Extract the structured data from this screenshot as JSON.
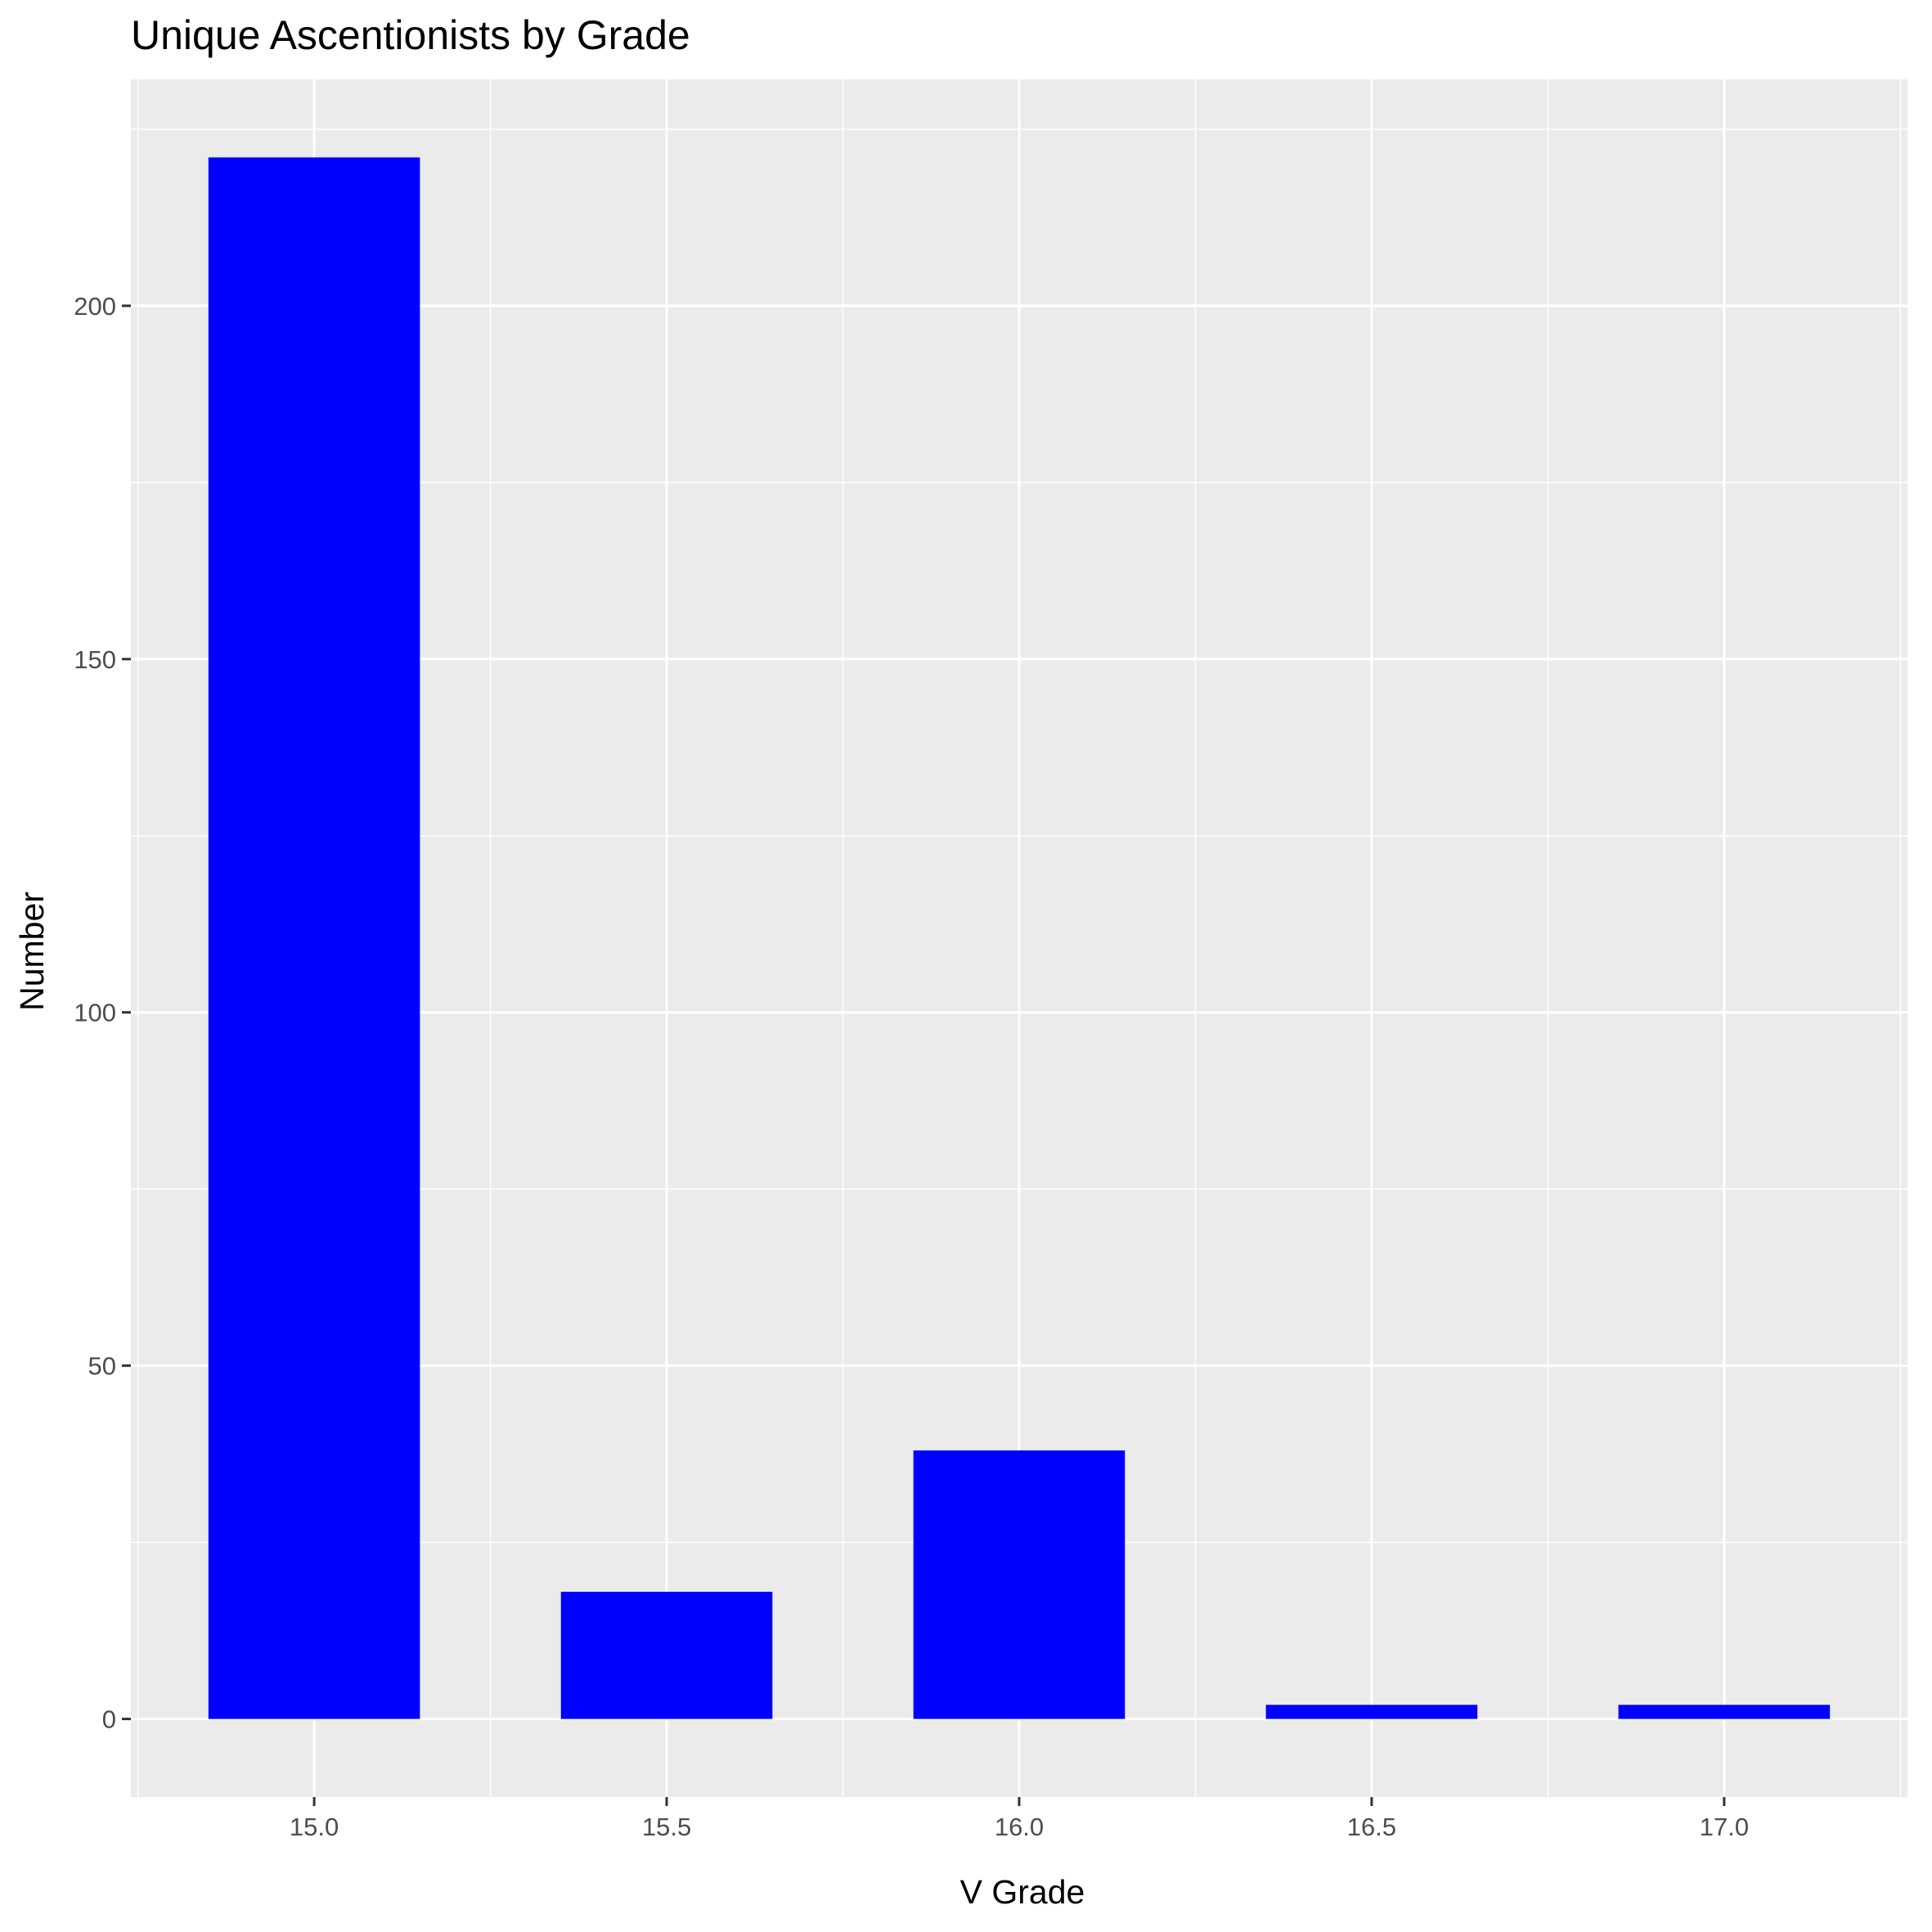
{
  "chart_data": {
    "type": "bar",
    "title": "Unique Ascentionists by Grade",
    "xlabel": "V Grade",
    "ylabel": "Number",
    "x": [
      15.0,
      15.5,
      16.0,
      16.5,
      17.0
    ],
    "values": [
      221,
      18,
      38,
      2,
      2
    ],
    "bar_width": 0.3,
    "xlim": [
      14.74,
      17.26
    ],
    "ylim": [
      -11.05,
      232.05
    ],
    "x_ticks": [
      15.0,
      15.5,
      16.0,
      16.5,
      17.0
    ],
    "x_tick_labels": [
      "15.0",
      "15.5",
      "16.0",
      "16.5",
      "17.0"
    ],
    "y_ticks": [
      0,
      50,
      100,
      150,
      200
    ],
    "y_tick_labels": [
      "0",
      "50",
      "100",
      "150",
      "200"
    ],
    "y_minor_ticks": [
      25,
      75,
      125,
      175,
      225
    ],
    "x_minor_ticks": [
      14.75,
      15.25,
      15.75,
      16.25,
      16.75,
      17.25
    ],
    "grid": true,
    "legend": "none",
    "bar_color": "#0000ff",
    "panel_color": "#ebebeb",
    "grid_color": "#ffffff"
  }
}
